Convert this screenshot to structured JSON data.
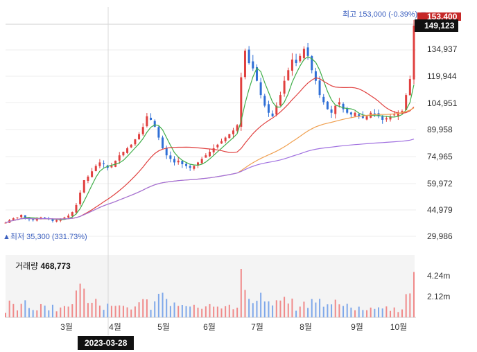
{
  "price_axis": [
    "153,000",
    "149,123",
    "134,937",
    "119,944",
    "104,951",
    "89,958",
    "74,965",
    "59,972",
    "44,979",
    "29,986"
  ],
  "volume_axis": [
    "4.24m",
    "2.12m"
  ],
  "months": [
    "3월",
    "4월",
    "5월",
    "6월",
    "7월",
    "8월",
    "9월",
    "10월"
  ],
  "high_note": "최고 153,000 (-0.39%) ▼",
  "low_note": "▲최저 35,300 (331.73%)",
  "current_price": "149,123",
  "top_price": "153,400",
  "volume_label": "거래량",
  "volume_value": "468,773",
  "cursor_date": "2023-03-28",
  "colors": {
    "up": "#e0403f",
    "down": "#2f6fd6",
    "ma5": "#3fae49",
    "ma20": "#e0403f",
    "ma60": "#f0a050",
    "ma120": "#a070e0",
    "accent": "#3b5fbf"
  },
  "chart_data": {
    "type": "candlestick",
    "ylim": [
      29986,
      153400
    ],
    "close_series": [
      38000,
      39500,
      40500,
      41000,
      42500,
      41000,
      40000,
      39500,
      40000,
      41000,
      40500,
      40000,
      39000,
      39500,
      40000,
      41000,
      42000,
      44000,
      48000,
      55000,
      62000,
      64000,
      67000,
      70000,
      72000,
      71000,
      69000,
      70000,
      73000,
      76000,
      78000,
      80000,
      82000,
      85000,
      88000,
      92000,
      98000,
      96000,
      92000,
      86000,
      80000,
      76000,
      74000,
      72000,
      73000,
      71000,
      70000,
      69000,
      70000,
      72000,
      74000,
      76000,
      78000,
      80000,
      82000,
      84000,
      86000,
      88000,
      90000,
      93000,
      120000,
      135000,
      128000,
      125000,
      118000,
      110000,
      104000,
      100000,
      98000,
      104000,
      110000,
      118000,
      124000,
      130000,
      128000,
      132000,
      136000,
      132000,
      124000,
      118000,
      110000,
      106000,
      102000,
      100000,
      104000,
      106000,
      102000,
      100000,
      99000,
      100000,
      98000,
      97000,
      98000,
      100000,
      99000,
      98000,
      96000,
      97000,
      98000,
      99000,
      100000,
      101000,
      110000,
      119000,
      149123
    ]
  }
}
